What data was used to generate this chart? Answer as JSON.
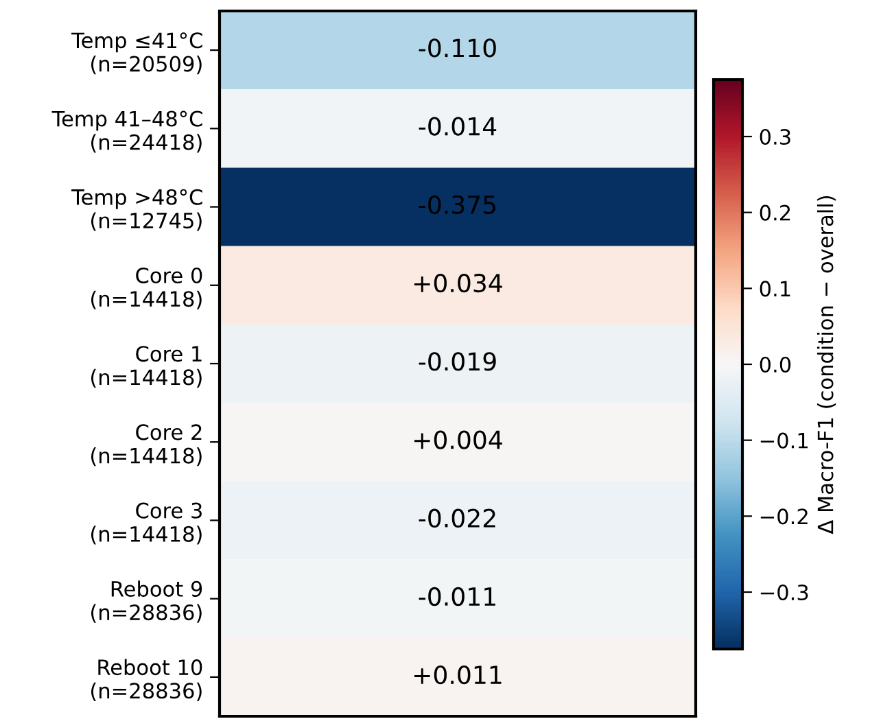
{
  "chart_data": {
    "type": "heatmap",
    "categories": [
      null
    ],
    "y_categories": [
      "Temp ≤41°C\n(n=20509)",
      "Temp 41–48°C\n(n=24418)",
      "Temp >48°C\n(n=12745)",
      "Core 0\n(n=14418)",
      "Core 1\n(n=14418)",
      "Core 2\n(n=14418)",
      "Core 3\n(n=14418)",
      "Reboot 9\n(n=28836)",
      "Reboot 10\n(n=28836)"
    ],
    "cells": [
      [
        -0.11
      ],
      [
        -0.014
      ],
      [
        -0.375
      ],
      [
        0.034
      ],
      [
        -0.019
      ],
      [
        0.004
      ],
      [
        -0.022
      ],
      [
        -0.011
      ],
      [
        0.011
      ]
    ],
    "cell_labels": [
      [
        "-0.110"
      ],
      [
        "-0.014"
      ],
      [
        "-0.375"
      ],
      [
        "+0.034"
      ],
      [
        "-0.019"
      ],
      [
        "+0.004"
      ],
      [
        "-0.022"
      ],
      [
        "-0.011"
      ],
      [
        "+0.011"
      ]
    ],
    "clim": [
      -0.375,
      0.375
    ],
    "cticks": [
      {
        "value": -0.3,
        "label": "−0.3"
      },
      {
        "value": -0.2,
        "label": "−0.2"
      },
      {
        "value": -0.1,
        "label": "−0.1"
      },
      {
        "value": 0,
        "label": "0.0"
      },
      0.1,
      0.2,
      0.3
    ],
    "clabel": "Δ Macro-F1 (condition − overall)",
    "tick_labels": "y"
  }
}
